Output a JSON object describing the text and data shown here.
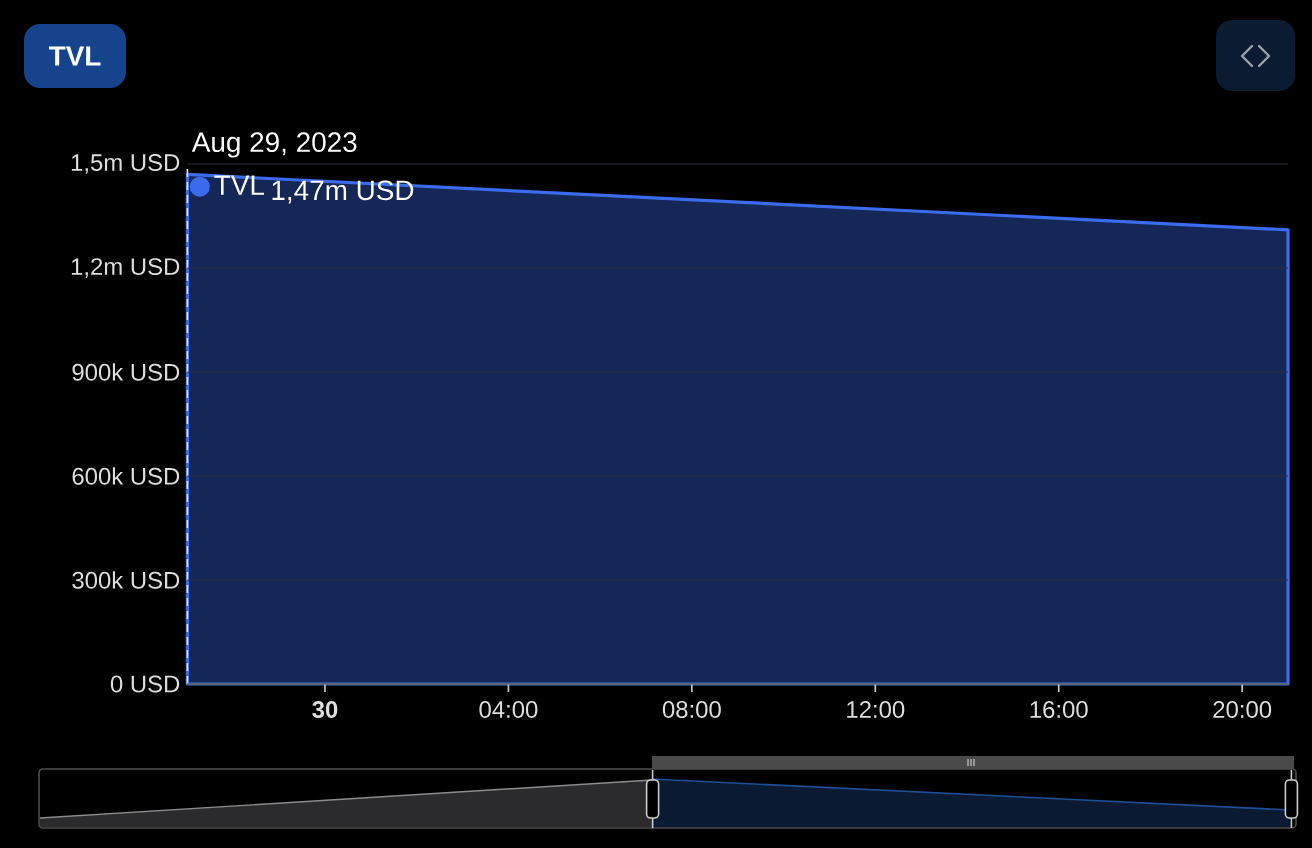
{
  "chart_data": {
    "type": "area",
    "title": "TVL",
    "x": [
      "2023-08-29T21:00",
      "2023-08-30T21:00"
    ],
    "series": [
      {
        "name": "TVL",
        "color": "#3b6cf0",
        "values": [
          1470000,
          1310000
        ]
      }
    ],
    "xlim": [
      "2023-08-29T21:00",
      "2023-08-30T21:00"
    ],
    "xticks": [
      {
        "value": "2023-08-30T00:00",
        "label": "30"
      },
      {
        "value": "2023-08-30T04:00",
        "label": "04:00"
      },
      {
        "value": "2023-08-30T08:00",
        "label": "08:00"
      },
      {
        "value": "2023-08-30T12:00",
        "label": "12:00"
      },
      {
        "value": "2023-08-30T16:00",
        "label": "16:00"
      },
      {
        "value": "2023-08-30T20:00",
        "label": "20:00"
      }
    ],
    "ylim": [
      0,
      1500000
    ],
    "yticks": [
      {
        "value": 0,
        "label": "0 USD"
      },
      {
        "value": 300000,
        "label": "300k USD"
      },
      {
        "value": 600000,
        "label": "600k USD"
      },
      {
        "value": 900000,
        "label": "900k USD"
      },
      {
        "value": 1200000,
        "label": "1,2m USD"
      },
      {
        "value": 1500000,
        "label": "1,5m USD"
      }
    ],
    "grid": "y",
    "legend": "top left",
    "annotations": [
      "1,47m USD"
    ],
    "ref_lines": [
      {
        "axis": "x",
        "value": "2023-08-29T21:00",
        "label": "Aug 29, 2023",
        "color": "#e8e8e8",
        "line_style": "dashed"
      }
    ]
  }
}
